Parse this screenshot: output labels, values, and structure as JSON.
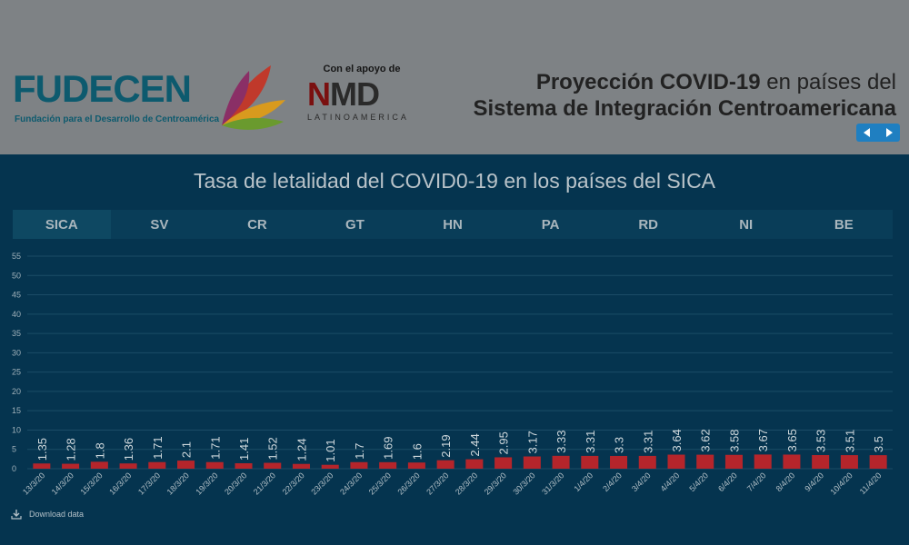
{
  "header": {
    "logo_text": "FUDECEN",
    "logo_subtitle": "Fundación para el Desarrollo de Centroamérica",
    "support_label": "Con el apoyo de",
    "support_logo_text": "NMD",
    "support_logo_sub": "LATINOAMERICA",
    "title_bold": "Proyección COVID-19",
    "title_normal": " en países del",
    "title_line2": "Sistema de Integración Centroamericana",
    "nav_prev_icon": "arrow-left-icon",
    "nav_next_icon": "arrow-right-icon"
  },
  "chart_title": "Tasa de letalidad del COVID0-19 en los países del SICA",
  "tabs": [
    {
      "label": "SICA",
      "active": true
    },
    {
      "label": "SV",
      "active": false
    },
    {
      "label": "CR",
      "active": false
    },
    {
      "label": "GT",
      "active": false
    },
    {
      "label": "HN",
      "active": false
    },
    {
      "label": "PA",
      "active": false
    },
    {
      "label": "RD",
      "active": false
    },
    {
      "label": "NI",
      "active": false
    },
    {
      "label": "BE",
      "active": false
    }
  ],
  "download_label": "Download data",
  "chart_data": {
    "type": "bar",
    "categories": [
      "13/3/20",
      "14/3/20",
      "15/3/20",
      "16/3/20",
      "17/3/20",
      "18/3/20",
      "19/3/20",
      "20/3/20",
      "21/3/20",
      "22/3/20",
      "23/3/20",
      "24/3/20",
      "25/3/20",
      "26/3/20",
      "27/3/20",
      "28/3/20",
      "29/3/20",
      "30/3/20",
      "31/3/20",
      "1/4/20",
      "2/4/20",
      "3/4/20",
      "4/4/20",
      "5/4/20",
      "6/4/20",
      "7/4/20",
      "8/4/20",
      "9/4/20",
      "10/4/20",
      "11/4/20"
    ],
    "values": [
      1.35,
      1.28,
      1.8,
      1.36,
      1.71,
      2.1,
      1.71,
      1.41,
      1.52,
      1.24,
      1.01,
      1.7,
      1.69,
      1.6,
      2.19,
      2.44,
      2.95,
      3.17,
      3.33,
      3.31,
      3.3,
      3.31,
      3.64,
      3.62,
      3.58,
      3.67,
      3.65,
      3.53,
      3.51,
      3.5
    ],
    "value_labels": [
      "1.35",
      "1.28",
      "1.8",
      "1.36",
      "1.71",
      "2.1",
      "1.71",
      "1.41",
      "1.52",
      "1.24",
      "1.01",
      "1.7",
      "1.69",
      "1.6",
      "2.19",
      "2.44",
      "2.95",
      "3.17",
      "3.33",
      "3.31",
      "3.3",
      "3.31",
      "3.64",
      "3.62",
      "3.58",
      "3.67",
      "3.65",
      "3.53",
      "3.51",
      "3.5"
    ],
    "yticks": [
      "0",
      "5",
      "10",
      "15",
      "20",
      "25",
      "30",
      "35",
      "40",
      "45",
      "50",
      "55"
    ],
    "ylim": [
      0,
      55
    ],
    "bar_color": "#b5252b",
    "grid": true
  }
}
